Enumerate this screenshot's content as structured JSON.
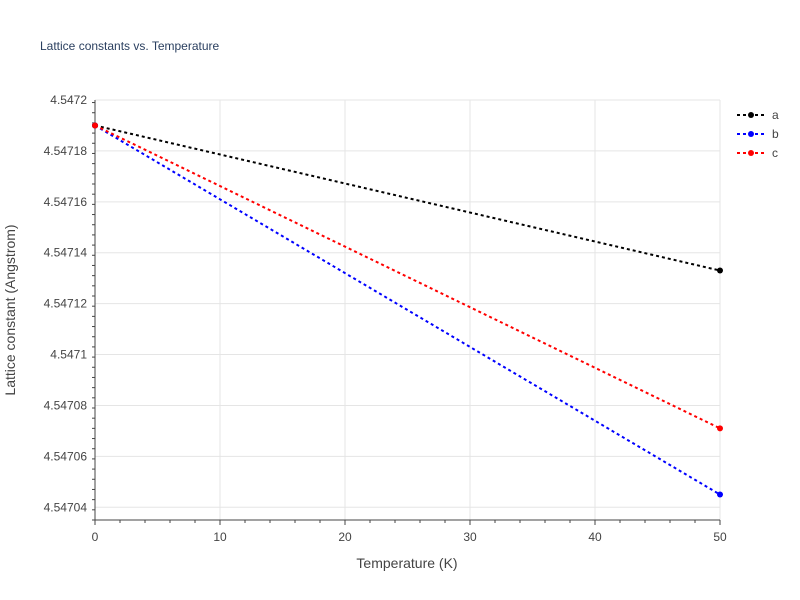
{
  "chart_data": {
    "type": "line",
    "title": "Lattice constants vs. Temperature",
    "xlabel": "Temperature (K)",
    "ylabel": "Lattice constant (Angstrom)",
    "x": [
      0,
      50
    ],
    "xlim": [
      0,
      50
    ],
    "ylim": [
      4.547035,
      4.5472
    ],
    "x_ticks": [
      0,
      10,
      20,
      30,
      40,
      50
    ],
    "x_tick_labels": [
      "0",
      "10",
      "20",
      "30",
      "40",
      "50"
    ],
    "y_ticks": [
      4.54704,
      4.54706,
      4.54708,
      4.5471,
      4.54712,
      4.54714,
      4.54716,
      4.54718,
      4.5472
    ],
    "y_tick_labels": [
      "4.54704",
      "4.54706",
      "4.54708",
      "4.5471",
      "4.54712",
      "4.54714",
      "4.54716",
      "4.54718",
      "4.5472"
    ],
    "grid": true,
    "legend_position": "top-right",
    "series": [
      {
        "name": "a",
        "color": "#000000",
        "values": [
          4.54719,
          4.547133
        ]
      },
      {
        "name": "b",
        "color": "#0000ff",
        "values": [
          4.54719,
          4.547045
        ]
      },
      {
        "name": "c",
        "color": "#ff0000",
        "values": [
          4.54719,
          4.547071
        ]
      }
    ]
  }
}
